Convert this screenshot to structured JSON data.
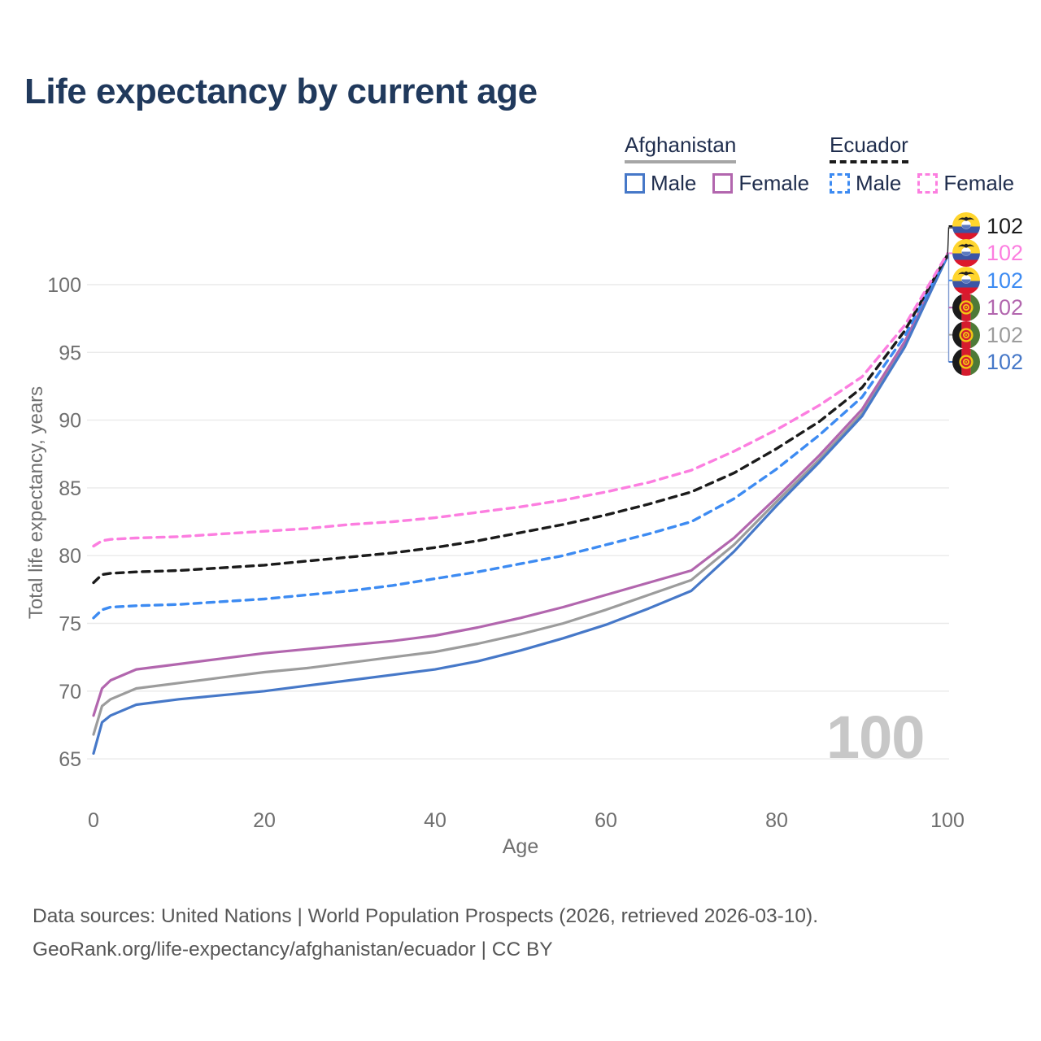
{
  "title": "Life expectancy by current age",
  "legend": {
    "groups": [
      {
        "country": "Afghanistan",
        "underline_color": "#a6a6a6",
        "underline_style": "solid",
        "items": [
          {
            "label": "Male",
            "color": "#4678c8",
            "border_style": "solid"
          },
          {
            "label": "Female",
            "color": "#b266ae",
            "border_style": "solid"
          }
        ]
      },
      {
        "country": "Ecuador",
        "underline_color": "#1b1b1b",
        "underline_style": "dashed",
        "items": [
          {
            "label": "Male",
            "color": "#3d8bf2",
            "border_style": "dashed"
          },
          {
            "label": "Female",
            "color": "#fc7ee0",
            "border_style": "dashed"
          }
        ]
      }
    ]
  },
  "chart_data": {
    "type": "line",
    "title": "Life expectancy by current age",
    "xlabel": "Age",
    "ylabel": "Total life expectancy, years",
    "xlim": [
      0,
      100
    ],
    "ylim": [
      63,
      103
    ],
    "xticks": [
      0,
      20,
      40,
      60,
      80,
      100
    ],
    "yticks": [
      65,
      70,
      75,
      80,
      85,
      90,
      95,
      100
    ],
    "grid": "horizontal",
    "legend_position": "top-right",
    "age_cursor_label": "100",
    "x": [
      0,
      1,
      2,
      5,
      10,
      15,
      20,
      25,
      30,
      35,
      40,
      45,
      50,
      55,
      60,
      65,
      70,
      75,
      80,
      85,
      90,
      95,
      100
    ],
    "series": [
      {
        "id": "afghanistan-both",
        "name": "Afghanistan — Both sexes",
        "country": "Afghanistan",
        "sex": "Both",
        "color": "#9c9c9c",
        "dash": false,
        "end_label": "102",
        "values": [
          66.8,
          68.9,
          69.4,
          70.2,
          70.6,
          71.0,
          71.4,
          71.7,
          72.1,
          72.5,
          72.9,
          73.5,
          74.2,
          75.0,
          76.0,
          77.1,
          78.2,
          80.8,
          84.0,
          87.1,
          90.5,
          95.6,
          102.1
        ]
      },
      {
        "id": "afghanistan-female",
        "name": "Afghanistan — Female",
        "country": "Afghanistan",
        "sex": "Female",
        "color": "#b266ae",
        "dash": false,
        "end_label": "102",
        "values": [
          68.2,
          70.2,
          70.8,
          71.6,
          72.0,
          72.4,
          72.8,
          73.1,
          73.4,
          73.7,
          74.1,
          74.7,
          75.4,
          76.2,
          77.1,
          78.0,
          78.9,
          81.3,
          84.3,
          87.4,
          90.8,
          95.8,
          102.2
        ]
      },
      {
        "id": "afghanistan-male",
        "name": "Afghanistan — Male",
        "country": "Afghanistan",
        "sex": "Male",
        "color": "#4678c8",
        "dash": false,
        "end_label": "102",
        "values": [
          65.4,
          67.7,
          68.2,
          69.0,
          69.4,
          69.7,
          70.0,
          70.4,
          70.8,
          71.2,
          71.6,
          72.2,
          73.0,
          73.9,
          74.9,
          76.1,
          77.4,
          80.3,
          83.7,
          86.9,
          90.3,
          95.4,
          102.1
        ]
      },
      {
        "id": "ecuador-male",
        "name": "Ecuador — Male",
        "country": "Ecuador",
        "sex": "Male",
        "color": "#3d8bf2",
        "dash": true,
        "end_label": "102",
        "values": [
          75.4,
          76.0,
          76.2,
          76.3,
          76.4,
          76.6,
          76.8,
          77.1,
          77.4,
          77.8,
          78.3,
          78.8,
          79.4,
          80.0,
          80.8,
          81.6,
          82.5,
          84.2,
          86.4,
          88.9,
          91.7,
          96.2,
          102.2
        ]
      },
      {
        "id": "ecuador-both",
        "name": "Ecuador — Both sexes",
        "country": "Ecuador",
        "sex": "Both",
        "color": "#1b1b1b",
        "dash": true,
        "end_label": "102",
        "values": [
          78.0,
          78.6,
          78.7,
          78.8,
          78.9,
          79.1,
          79.3,
          79.6,
          79.9,
          80.2,
          80.6,
          81.1,
          81.7,
          82.3,
          83.0,
          83.8,
          84.7,
          86.1,
          87.9,
          89.9,
          92.4,
          96.6,
          102.2
        ]
      },
      {
        "id": "ecuador-female",
        "name": "Ecuador — Female",
        "country": "Ecuador",
        "sex": "Female",
        "color": "#fc7ee0",
        "dash": true,
        "end_label": "102",
        "values": [
          80.7,
          81.1,
          81.2,
          81.3,
          81.4,
          81.6,
          81.8,
          82.0,
          82.3,
          82.5,
          82.8,
          83.2,
          83.6,
          84.1,
          84.7,
          85.4,
          86.3,
          87.7,
          89.3,
          91.1,
          93.2,
          97.0,
          102.3
        ]
      }
    ]
  },
  "end_labels": [
    {
      "series": "ecuador-both",
      "flag": "ecuador",
      "value": "102",
      "color": "#1b1b1b"
    },
    {
      "series": "ecuador-female",
      "flag": "ecuador",
      "value": "102",
      "color": "#fc7ee0"
    },
    {
      "series": "ecuador-male",
      "flag": "ecuador",
      "value": "102",
      "color": "#3d8bf2"
    },
    {
      "series": "afghanistan-female",
      "flag": "afghanistan",
      "value": "102",
      "color": "#b266ae"
    },
    {
      "series": "afghanistan-both",
      "flag": "afghanistan",
      "value": "102",
      "color": "#9c9c9c"
    },
    {
      "series": "afghanistan-male",
      "flag": "afghanistan",
      "value": "102",
      "color": "#4678c8"
    }
  ],
  "colors": {
    "title": "#20395c",
    "axis_text": "#6f6f6f",
    "gridline": "#eaeaea",
    "watermark": "#c7c7c7",
    "footer_text": "#565656"
  },
  "footer": {
    "line1": "Data sources: United Nations | World Population Prospects (2026, retrieved 2026-03-10).",
    "line2": "GeoRank.org/life-expectancy/afghanistan/ecuador | CC BY"
  }
}
